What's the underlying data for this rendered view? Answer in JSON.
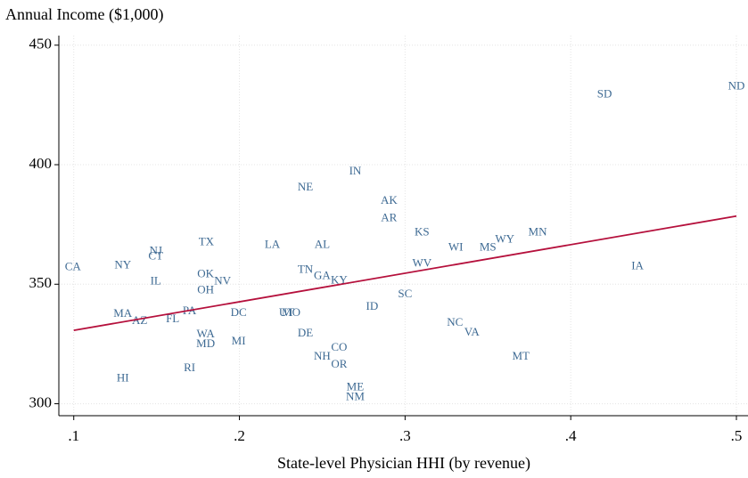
{
  "chart_data": {
    "type": "scatter",
    "y_title": "Annual Income ($1,000)",
    "x_title": "State-level Physician HHI (by revenue)",
    "labels": [
      "CA",
      "NY",
      "NJ",
      "CT",
      "IL",
      "TX",
      "OK",
      "OH",
      "NV",
      "LA",
      "AL",
      "NE",
      "IN",
      "AK",
      "AR",
      "KS",
      "WI",
      "MS",
      "WY",
      "MN",
      "SD",
      "ND",
      "IA",
      "WV",
      "TN",
      "GA",
      "KY",
      "SC",
      "ID",
      "NC",
      "VA",
      "MT",
      "MA",
      "AZ",
      "PA",
      "FL",
      "DC",
      "UT",
      "MO",
      "DE",
      "WA",
      "MD",
      "MI",
      "CO",
      "NH",
      "OR",
      "RI",
      "HI",
      "ME",
      "NM"
    ],
    "x": [
      0.0995,
      0.1296,
      0.1495,
      0.1495,
      0.1495,
      0.18,
      0.1796,
      0.1796,
      0.1898,
      0.2199,
      0.25,
      0.2398,
      0.2699,
      0.2903,
      0.2903,
      0.3102,
      0.3306,
      0.35,
      0.3602,
      0.38,
      0.4204,
      0.5,
      0.4403,
      0.3102,
      0.2398,
      0.25,
      0.2602,
      0.3,
      0.2801,
      0.3301,
      0.3403,
      0.3699,
      0.1296,
      0.1398,
      0.1699,
      0.1597,
      0.1995,
      0.2285,
      0.2312,
      0.2398,
      0.1796,
      0.1796,
      0.1995,
      0.2602,
      0.25,
      0.2602,
      0.1699,
      0.1296,
      0.2699,
      0.2699
    ],
    "y": [
      357.0,
      357.8,
      363.7,
      361.5,
      351.1,
      367.4,
      354.1,
      347.4,
      351.1,
      366.3,
      366.3,
      390.4,
      397.0,
      384.8,
      377.4,
      371.5,
      365.2,
      365.2,
      368.5,
      371.5,
      429.3,
      432.6,
      357.4,
      358.5,
      355.9,
      353.3,
      351.5,
      345.6,
      340.4,
      333.7,
      329.6,
      319.6,
      337.4,
      334.4,
      338.5,
      335.2,
      337.8,
      337.8,
      337.8,
      329.3,
      328.9,
      324.8,
      325.9,
      323.3,
      319.6,
      316.3,
      314.8,
      310.4,
      306.7,
      302.6
    ],
    "color": "#3e6a93",
    "fit": {
      "x": [
        0.1,
        0.5
      ],
      "y": [
        330.7,
        378.5
      ],
      "color": "#b5103c"
    },
    "xlim": [
      0.091,
      0.507
    ],
    "ylim": [
      295,
      454
    ],
    "xticks": [
      {
        "value": 0.1,
        "label": ".1"
      },
      {
        "value": 0.2,
        "label": ".2"
      },
      {
        "value": 0.3,
        "label": ".3"
      },
      {
        "value": 0.4,
        "label": ".4"
      },
      {
        "value": 0.5,
        "label": ".5"
      }
    ],
    "yticks": [
      300,
      350,
      400,
      450
    ],
    "grid": true
  }
}
